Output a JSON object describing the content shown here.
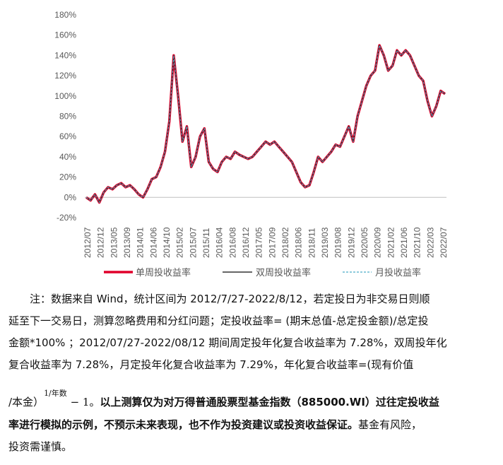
{
  "chart_data": {
    "type": "line",
    "ylim": [
      -20,
      180
    ],
    "y_ticks": [
      "-20%",
      "0%",
      "20%",
      "40%",
      "60%",
      "80%",
      "100%",
      "120%",
      "140%",
      "160%",
      "180%"
    ],
    "x_ticks": [
      "2012/07",
      "2012/12",
      "2013/05",
      "2013/09",
      "2014/01",
      "2014/06",
      "2014/10",
      "2015/02",
      "2015/07",
      "2015/11",
      "2016/04",
      "2016/08",
      "2016/12",
      "2017/05",
      "2017/09",
      "2018/02",
      "2018/06",
      "2018/11",
      "2019/03",
      "2019/08",
      "2019/12",
      "2020/05",
      "2020/09",
      "2021/02",
      "2021/06",
      "2021/10",
      "2022/03",
      "2022/07"
    ],
    "grid": false,
    "legend_position": "bottom",
    "x": [
      "2012/07",
      "2012/09",
      "2012/11",
      "2012/12",
      "2013/01",
      "2013/03",
      "2013/05",
      "2013/07",
      "2013/09",
      "2013/11",
      "2014/01",
      "2014/03",
      "2014/05",
      "2014/06",
      "2014/08",
      "2014/10",
      "2014/11",
      "2014/12",
      "2015/01",
      "2015/02",
      "2015/03",
      "2015/04",
      "2015/05",
      "2015/06",
      "2015/07",
      "2015/08",
      "2015/09",
      "2015/10",
      "2015/11",
      "2015/12",
      "2016/01",
      "2016/02",
      "2016/04",
      "2016/06",
      "2016/08",
      "2016/10",
      "2016/12",
      "2017/02",
      "2017/05",
      "2017/07",
      "2017/09",
      "2017/11",
      "2018/01",
      "2018/02",
      "2018/03",
      "2018/04",
      "2018/06",
      "2018/08",
      "2018/10",
      "2018/11",
      "2018/12",
      "2019/01",
      "2019/03",
      "2019/04",
      "2019/06",
      "2019/08",
      "2019/10",
      "2019/12",
      "2020/01",
      "2020/03",
      "2020/05",
      "2020/07",
      "2020/08",
      "2020/10",
      "2020/12",
      "2021/01",
      "2021/02",
      "2021/03",
      "2021/04",
      "2021/06",
      "2021/07",
      "2021/08",
      "2021/10",
      "2021/11",
      "2021/12",
      "2022/01",
      "2022/02",
      "2022/03",
      "2022/04",
      "2022/05",
      "2022/06",
      "2022/07",
      "2022/08"
    ],
    "series": [
      {
        "name": "单周投收益率",
        "color": "#e0002a",
        "values": [
          0,
          -3,
          3,
          -5,
          5,
          10,
          8,
          12,
          14,
          10,
          12,
          8,
          3,
          0,
          8,
          18,
          20,
          30,
          45,
          75,
          140,
          100,
          55,
          70,
          30,
          40,
          60,
          68,
          35,
          28,
          25,
          35,
          40,
          38,
          45,
          42,
          40,
          38,
          40,
          45,
          50,
          55,
          52,
          55,
          50,
          45,
          40,
          35,
          25,
          15,
          10,
          12,
          25,
          40,
          35,
          40,
          45,
          52,
          50,
          60,
          70,
          55,
          80,
          95,
          110,
          120,
          125,
          150,
          140,
          125,
          130,
          145,
          140,
          145,
          140,
          130,
          120,
          115,
          95,
          80,
          90,
          105,
          102
        ]
      },
      {
        "name": "双周投收益率",
        "color": "#333333",
        "values": [
          0,
          -3,
          3,
          -5,
          5,
          10,
          8,
          12,
          14,
          10,
          12,
          8,
          3,
          0,
          8,
          18,
          20,
          30,
          45,
          75,
          140,
          100,
          55,
          70,
          30,
          40,
          60,
          68,
          35,
          28,
          25,
          35,
          40,
          38,
          45,
          42,
          40,
          38,
          40,
          45,
          50,
          55,
          52,
          55,
          50,
          45,
          40,
          35,
          25,
          15,
          10,
          12,
          25,
          40,
          35,
          40,
          45,
          52,
          50,
          60,
          70,
          55,
          80,
          95,
          110,
          120,
          125,
          150,
          140,
          125,
          130,
          145,
          140,
          145,
          140,
          130,
          120,
          115,
          95,
          80,
          90,
          105,
          102
        ]
      },
      {
        "name": "月投收益率",
        "color": "#4bacc6",
        "values": [
          0,
          -3,
          3,
          -5,
          5,
          10,
          8,
          12,
          14,
          10,
          12,
          8,
          3,
          0,
          8,
          18,
          20,
          30,
          45,
          75,
          140,
          100,
          55,
          70,
          30,
          40,
          60,
          68,
          35,
          28,
          25,
          35,
          40,
          38,
          45,
          42,
          40,
          38,
          40,
          45,
          50,
          55,
          52,
          55,
          50,
          45,
          40,
          35,
          25,
          15,
          10,
          12,
          25,
          40,
          35,
          40,
          45,
          52,
          50,
          60,
          70,
          55,
          80,
          95,
          110,
          120,
          125,
          150,
          140,
          125,
          130,
          145,
          140,
          145,
          140,
          130,
          120,
          115,
          95,
          80,
          90,
          105,
          102
        ]
      }
    ]
  },
  "note": {
    "line1": "注：数据来自 Wind，统计区间为 2012/7/27-2022/8/12，若定投日为非交易日则顺",
    "line2": "延至下一交易日，测算忽略费用和分红问题；定投收益率= (期末总值-总定投金额)/总定投",
    "line3": "金额*100% ；2012/07/27-2022/08/12 期间周定投年化复合收益率为 7.28%，双周投年化",
    "line4": "复合收益率为 7.28%，月定投年化复合收益率为 7.29%，年化复合收益率=(现有价值",
    "line5_prefix": "/本金）",
    "exponent": "1/年数",
    "minus_one": "− 1。",
    "bold1": "以上测算仅为对万得普通股票型基金指数（885000.WI）过往定投收益",
    "bold2": "率进行模拟的示例，不预示未来表现，也不作为投资建议或投资收益保证。",
    "line6_tail": "基金有风险，",
    "line7": "投资需谨慎。"
  }
}
